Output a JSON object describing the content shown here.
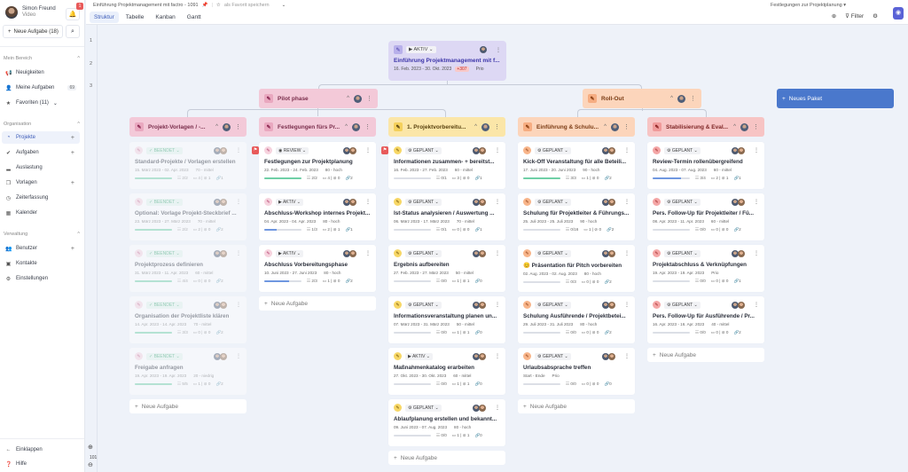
{
  "user": {
    "name": "Simon Freund",
    "subtitle": "Video",
    "notification_count": "1"
  },
  "sidebar": {
    "new_task_label": "Neue Aufgabe (18)",
    "sections": [
      {
        "title": "Mein Bereich",
        "items": [
          {
            "label": "Neuigkeiten",
            "icon": "megaphone-icon"
          },
          {
            "label": "Meine Aufgaben",
            "icon": "user-icon",
            "badge": "69"
          },
          {
            "label": "Favoriten (11)",
            "icon": "star-icon",
            "chevron": true
          }
        ]
      },
      {
        "title": "Organisation",
        "items": [
          {
            "label": "Projekte",
            "icon": "pie-chart-icon",
            "plus": true,
            "active": true
          },
          {
            "label": "Aufgaben",
            "icon": "check-circle-icon",
            "plus": true
          },
          {
            "label": "Auslastung",
            "icon": "chart-icon"
          },
          {
            "label": "Vorlagen",
            "icon": "copy-icon",
            "plus": true
          },
          {
            "label": "Zeiterfassung",
            "icon": "clock-icon"
          },
          {
            "label": "Kalender",
            "icon": "calendar-icon"
          }
        ]
      },
      {
        "title": "Verwaltung",
        "items": [
          {
            "label": "Benutzer",
            "icon": "users-icon",
            "plus": true
          },
          {
            "label": "Kontakte",
            "icon": "contact-icon"
          },
          {
            "label": "Einstellungen",
            "icon": "gear-icon"
          }
        ]
      }
    ],
    "collapse_label": "Einklappen",
    "help_label": "Hilfe"
  },
  "header": {
    "breadcrumb": "Einführung Projektmanagement mit factro - 1091",
    "favorite_label": "als Favorit speichern",
    "view_select": "Festlegungen zur Projektplanung",
    "filter_label": "Filter",
    "tabs": [
      "Struktur",
      "Tabelle",
      "Kanban",
      "Gantt"
    ],
    "active_tab": "Struktur"
  },
  "gutter": {
    "rows": [
      "1",
      "2",
      "3"
    ],
    "zoom_level": "101"
  },
  "root": {
    "status": "AKTIV",
    "title": "Einführung Projektmanagement mit f...",
    "dates": "16. Feb. 2023 - 30. Okt. 2023",
    "overdue": "+307",
    "prio": "Prio"
  },
  "packages_l2": [
    {
      "title": "Pilot phase",
      "color": "pink"
    },
    {
      "title": "Roll-Out",
      "color": "orange"
    }
  ],
  "new_package_label": "Neues Paket",
  "add_task_label": "Neue Aufgabe",
  "columns": [
    {
      "title": "Projekt-Vorlagen / -...",
      "color": "pink",
      "cards": [
        {
          "status": "BEENDET",
          "title": "Standard-Projekte / Vorlagen erstellen",
          "dates": "15. März 2023 - 02. Apr. 2023",
          "prio": "70 - mittel",
          "progress": 100,
          "checklist": "2/2",
          "comments": "4",
          "attachments": "1",
          "links": "1",
          "faded": true
        },
        {
          "status": "BEENDET",
          "title": "Optional: Vorlage Projekt-Steckbrief ...",
          "dates": "23. März 2023 - 27. März 2023",
          "prio": "70 - mittel",
          "progress": 100,
          "checklist": "2/2",
          "comments": "2",
          "attachments": "0",
          "links": "2",
          "faded": true
        },
        {
          "status": "BEENDET",
          "title": "Projektprozess definieren",
          "dates": "31. März 2023 - 11. Apr. 2023",
          "prio": "60 - mittel",
          "progress": 100,
          "checklist": "4/4",
          "comments": "0",
          "attachments": "0",
          "links": "2",
          "faded": true
        },
        {
          "status": "BEENDET",
          "title": "Organisation der Projektliste klären",
          "dates": "14. Apr. 2023 - 14. Apr. 2023",
          "prio": "70 - mittel",
          "progress": 100,
          "checklist": "3/3",
          "comments": "0",
          "attachments": "0",
          "links": "2",
          "faded": true
        },
        {
          "status": "BEENDET",
          "title": "Freigabe anfragen",
          "dates": "19. Apr. 2023 - 19. Apr. 2023",
          "prio": "20 - niedrig",
          "progress": 100,
          "checklist": "5/5",
          "comments": "1",
          "attachments": "0",
          "links": "2",
          "faded": true
        }
      ]
    },
    {
      "title": "Festlegungen fürs Pr...",
      "color": "pink",
      "cards": [
        {
          "status": "REVIEW",
          "title": "Festlegungen zur Projektplanung",
          "dates": "22. Feb. 2023 - 24. Feb. 2023",
          "prio": "80 - hoch",
          "progress": 100,
          "checklist": "2/2",
          "comments": "4",
          "attachments": "0",
          "links": "2",
          "flag": true
        },
        {
          "status": "AKTIV",
          "title": "Abschluss-Workshop internes Projekt...",
          "dates": "04. Apr. 2023 - 04. Apr. 2023",
          "prio": "80 - hoch",
          "progress": 33,
          "checklist": "1/3",
          "comments": "2",
          "attachments": "1",
          "links": "1"
        },
        {
          "status": "AKTIV",
          "title": "Abschluss Vorbereitungsphase",
          "dates": "10. Juni 2023 - 27. Juni 2023",
          "prio": "80 - hoch",
          "progress": 66,
          "checklist": "2/3",
          "comments": "1",
          "attachments": "0",
          "links": "2"
        }
      ]
    },
    {
      "title": "1. Projektvorbereitu...",
      "color": "yellow",
      "cards": [
        {
          "status": "GEPLANT",
          "title": "Informationen zusammen- + bereitst...",
          "dates": "16. Feb. 2023 - 27. Feb. 2023",
          "prio": "60 - mittel",
          "progress": 0,
          "checklist": "0/1",
          "comments": "3",
          "attachments": "0",
          "links": "1",
          "flag": true
        },
        {
          "status": "GEPLANT",
          "title": "Ist-Status analysieren / Auswertung ...",
          "dates": "06. März 2023 - 17. März 2023",
          "prio": "70 - mittel",
          "progress": 0,
          "checklist": "0/1",
          "comments": "0",
          "attachments": "0",
          "links": "1"
        },
        {
          "status": "GEPLANT",
          "title": "Ergebnis aufbereiten",
          "dates": "27. Feb. 2023 - 27. März 2023",
          "prio": "50 - mittel",
          "progress": 0,
          "checklist": "0/0",
          "comments": "1",
          "attachments": "1",
          "links": "0"
        },
        {
          "status": "GEPLANT",
          "title": "Informationsveranstaltung planen un...",
          "dates": "07. März 2023 - 31. März 2023",
          "prio": "50 - mittel",
          "progress": 0,
          "checklist": "0/0",
          "comments": "1",
          "attachments": "1",
          "links": "0"
        },
        {
          "status": "AKTIV",
          "title": "Maßnahmenkatalog erarbeiten",
          "dates": "27. Okt. 2023 - 30. Okt. 2023",
          "prio": "60 - mittel",
          "progress": 0,
          "checklist": "0/0",
          "comments": "1",
          "attachments": "1",
          "links": "0"
        },
        {
          "status": "GEPLANT",
          "title": "Ablaufplanung erstellen und bekannt...",
          "dates": "09. Juni 2023 - 07. Aug. 2023",
          "prio": "80 - hoch",
          "progress": 0,
          "checklist": "0/0",
          "comments": "1",
          "attachments": "1",
          "links": "0"
        }
      ]
    },
    {
      "title": "Einführung & Schulu...",
      "color": "orange",
      "cards": [
        {
          "status": "GEPLANT",
          "title": "Kick-Off Veranstaltung für alle Beteili...",
          "dates": "17. Juni 2023 - 20. Juni 2023",
          "prio": "90 - hoch",
          "progress": 100,
          "checklist": "3/3",
          "comments": "1",
          "attachments": "0",
          "links": "2"
        },
        {
          "status": "GEPLANT",
          "title": "Schulung für Projektleiter & Führungs...",
          "dates": "25. Juli 2023 - 25. Juli 2023",
          "prio": "90 - hoch",
          "progress": 0,
          "checklist": "0/16",
          "comments": "1",
          "attachments": "0",
          "links": "2"
        },
        {
          "status": "GEPLANT",
          "title": "Präsentation für Pitch vorbereiten",
          "dates": "02. Aug. 2023 - 02. Aug. 2023",
          "prio": "80 - hoch",
          "progress": 0,
          "checklist": "0/3",
          "comments": "0",
          "attachments": "0",
          "links": "2",
          "emoji": "😊"
        },
        {
          "status": "GEPLANT",
          "title": "Schulung Ausführende / Projektbetei...",
          "dates": "29. Juli 2023 - 31. Juli 2023",
          "prio": "80 - hoch",
          "progress": 0,
          "checklist": "0/0",
          "comments": "0",
          "attachments": "0",
          "links": "2"
        },
        {
          "status": "GEPLANT",
          "title": "Urlaubsabsprache treffen",
          "dates": "Start - Ende",
          "prio": "Prio",
          "progress": 0,
          "checklist": "0/0",
          "comments": "0",
          "attachments": "0",
          "links": "0"
        }
      ]
    },
    {
      "title": "Stabilisierung & Eval...",
      "color": "red",
      "cards": [
        {
          "status": "GEPLANT",
          "title": "Review-Termin rollenübergreifend",
          "dates": "04. Aug. 2023 - 07. Aug. 2023",
          "prio": "60 - mittel",
          "progress": 75,
          "checklist": "3/4",
          "comments": "2",
          "attachments": "1",
          "links": "1"
        },
        {
          "status": "GEPLANT",
          "title": "Pers. Follow-Up für Projektleiter / Fü...",
          "dates": "08. Apr. 2023 - 11. Apr. 2023",
          "prio": "60 - mittel",
          "progress": 0,
          "checklist": "0/0",
          "comments": "0",
          "attachments": "0",
          "links": "2"
        },
        {
          "status": "GEPLANT",
          "title": "Projektabschluss & Verknüpfungen",
          "dates": "19. Apr. 2023 - 19. Apr. 2023",
          "prio": "Prio",
          "progress": 0,
          "checklist": "0/0",
          "comments": "0",
          "attachments": "0",
          "links": "1"
        },
        {
          "status": "GEPLANT",
          "title": "Pers. Follow-Up für Ausführende / Pr...",
          "dates": "16. Apr. 2023 - 16. Apr. 2023",
          "prio": "40 - mittel",
          "progress": 0,
          "checklist": "0/0",
          "comments": "0",
          "attachments": "0",
          "links": "2"
        }
      ]
    }
  ],
  "colors": {
    "accent": "#4a78cc",
    "active_nav": "#3d5cb8",
    "done_green": "#6fcfa6",
    "progress_blue": "#6f97e0",
    "flag_red": "#e85a5a"
  }
}
